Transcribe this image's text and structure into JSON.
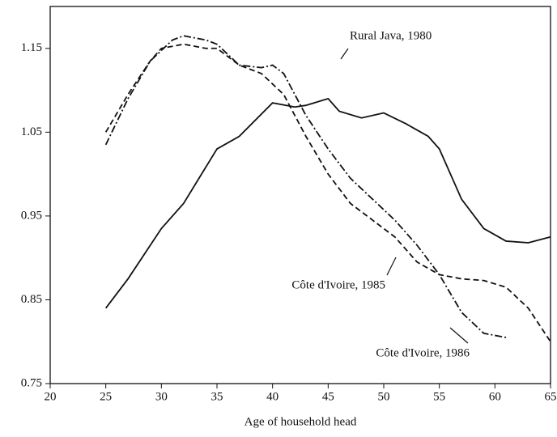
{
  "chart_data": {
    "type": "line",
    "xlabel": "Age of household head",
    "xlim": [
      20,
      65
    ],
    "xticks": [
      20,
      25,
      30,
      35,
      40,
      45,
      50,
      55,
      60,
      65
    ],
    "ylim": [
      0.75,
      1.2
    ],
    "yticks": [
      0.75,
      0.85,
      0.95,
      1.05,
      1.15
    ],
    "grid": false,
    "series": [
      {
        "name": "Rural Java, 1980",
        "color": "#111111",
        "dash": "solid",
        "x": [
          25,
          27,
          30,
          32,
          35,
          37,
          40,
          42,
          43,
          45,
          46,
          48,
          50,
          52,
          54,
          55,
          57,
          59,
          61,
          63,
          65
        ],
        "values": [
          0.84,
          0.875,
          0.935,
          0.965,
          1.03,
          1.045,
          1.085,
          1.08,
          1.082,
          1.09,
          1.075,
          1.067,
          1.073,
          1.06,
          1.045,
          1.03,
          0.97,
          0.935,
          0.92,
          0.918,
          0.925
        ]
      },
      {
        "name": "Côte d'Ivoire, 1985",
        "color": "#111111",
        "dash": "dashed",
        "x": [
          25,
          27,
          29,
          30,
          32,
          34,
          35,
          37,
          39,
          41,
          43,
          45,
          47,
          49,
          51,
          53,
          55,
          57,
          59,
          61,
          63,
          65
        ],
        "values": [
          1.05,
          1.095,
          1.135,
          1.15,
          1.155,
          1.15,
          1.15,
          1.13,
          1.12,
          1.095,
          1.045,
          1.0,
          0.965,
          0.945,
          0.925,
          0.895,
          0.88,
          0.875,
          0.873,
          0.865,
          0.84,
          0.8
        ]
      },
      {
        "name": "Côte d'Ivoire, 1986",
        "color": "#111111",
        "dash": "dashdot",
        "x": [
          25,
          27,
          29,
          31,
          32,
          34,
          35,
          37,
          39,
          40,
          41,
          43,
          45,
          47,
          49,
          51,
          53,
          55,
          57,
          59,
          61
        ],
        "values": [
          1.035,
          1.09,
          1.135,
          1.16,
          1.165,
          1.16,
          1.155,
          1.13,
          1.127,
          1.13,
          1.12,
          1.07,
          1.03,
          0.995,
          0.97,
          0.945,
          0.915,
          0.88,
          0.835,
          0.81,
          0.805
        ]
      }
    ]
  }
}
